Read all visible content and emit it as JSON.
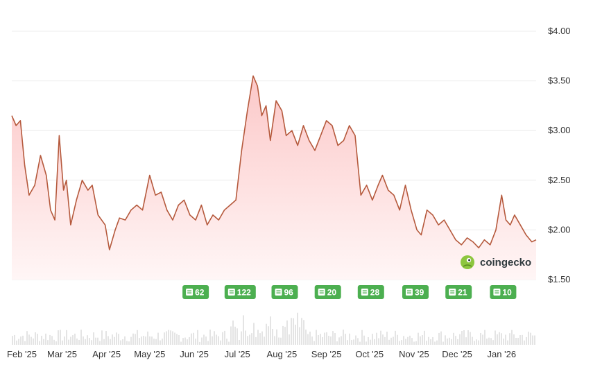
{
  "brand": {
    "name": "coingecko"
  },
  "colors": {
    "line": "#b5593c",
    "line_down": "#d63a2f",
    "area_top": "#fcc8c8",
    "area_bottom": "#fff6f6",
    "grid": "#ececec",
    "badge": "#4caf50",
    "volume": "#e4e4e4",
    "logo": "#8dc63f"
  },
  "chart_data": {
    "type": "area",
    "ylim": [
      1.5,
      4.0
    ],
    "yticks": [
      "$4.00",
      "$3.50",
      "$3.00",
      "$2.50",
      "$2.00",
      "$1.50"
    ],
    "ytick_values": [
      4.0,
      3.5,
      3.0,
      2.5,
      2.0,
      1.5
    ],
    "xticks": [
      "Feb '25",
      "Mar '25",
      "Apr '25",
      "May '25",
      "Jun '25",
      "Jul '25",
      "Aug '25",
      "Sep '25",
      "Oct '25",
      "Nov '25",
      "Dec '25",
      "Jan '26"
    ],
    "xtick_dates": [
      "2025-02-01",
      "2025-03-01",
      "2025-04-01",
      "2025-05-01",
      "2025-06-01",
      "2025-07-01",
      "2025-08-01",
      "2025-09-01",
      "2025-10-01",
      "2025-11-01",
      "2025-12-01",
      "2026-01-01"
    ],
    "x_range": [
      "2025-01-25",
      "2026-01-25"
    ],
    "grid": true,
    "series": [
      {
        "x": [
          "2025-01-25",
          "2025-01-28",
          "2025-01-31",
          "2025-02-03",
          "2025-02-06",
          "2025-02-10",
          "2025-02-14",
          "2025-02-18",
          "2025-02-21",
          "2025-02-24",
          "2025-02-27",
          "2025-03-02",
          "2025-03-04",
          "2025-03-07",
          "2025-03-11",
          "2025-03-15",
          "2025-03-19",
          "2025-03-22",
          "2025-03-26",
          "2025-03-31",
          "2025-04-03",
          "2025-04-07",
          "2025-04-10",
          "2025-04-14",
          "2025-04-18",
          "2025-04-22",
          "2025-04-26",
          "2025-05-01",
          "2025-05-05",
          "2025-05-09",
          "2025-05-13",
          "2025-05-17",
          "2025-05-21",
          "2025-05-25",
          "2025-05-29",
          "2025-06-02",
          "2025-06-06",
          "2025-06-10",
          "2025-06-14",
          "2025-06-18",
          "2025-06-22",
          "2025-06-26",
          "2025-06-30",
          "2025-07-04",
          "2025-07-08",
          "2025-07-12",
          "2025-07-15",
          "2025-07-18",
          "2025-07-21",
          "2025-07-24",
          "2025-07-28",
          "2025-08-01",
          "2025-08-04",
          "2025-08-08",
          "2025-08-12",
          "2025-08-16",
          "2025-08-20",
          "2025-08-24",
          "2025-08-28",
          "2025-09-01",
          "2025-09-05",
          "2025-09-09",
          "2025-09-13",
          "2025-09-17",
          "2025-09-21",
          "2025-09-25",
          "2025-09-29",
          "2025-10-03",
          "2025-10-07",
          "2025-10-10",
          "2025-10-14",
          "2025-10-18",
          "2025-10-22",
          "2025-10-26",
          "2025-10-30",
          "2025-11-03",
          "2025-11-06",
          "2025-11-10",
          "2025-11-14",
          "2025-11-18",
          "2025-11-22",
          "2025-11-26",
          "2025-11-30",
          "2025-12-04",
          "2025-12-08",
          "2025-12-12",
          "2025-12-16",
          "2025-12-20",
          "2025-12-24",
          "2025-12-28",
          "2026-01-01",
          "2026-01-04",
          "2026-01-07",
          "2026-01-10",
          "2026-01-14",
          "2026-01-18",
          "2026-01-22",
          "2026-01-25"
        ],
        "values": [
          3.15,
          3.05,
          3.1,
          2.65,
          2.35,
          2.45,
          2.75,
          2.55,
          2.2,
          2.1,
          2.95,
          2.4,
          2.5,
          2.05,
          2.3,
          2.5,
          2.4,
          2.45,
          2.15,
          2.05,
          1.8,
          2.0,
          2.12,
          2.1,
          2.2,
          2.25,
          2.2,
          2.55,
          2.35,
          2.38,
          2.2,
          2.1,
          2.25,
          2.3,
          2.15,
          2.1,
          2.25,
          2.05,
          2.15,
          2.1,
          2.2,
          2.25,
          2.3,
          2.8,
          3.2,
          3.55,
          3.45,
          3.15,
          3.25,
          2.9,
          3.3,
          3.2,
          2.95,
          3.0,
          2.85,
          3.05,
          2.9,
          2.8,
          2.95,
          3.1,
          3.05,
          2.85,
          2.9,
          3.05,
          2.95,
          2.35,
          2.45,
          2.3,
          2.45,
          2.55,
          2.4,
          2.35,
          2.2,
          2.45,
          2.2,
          2.0,
          1.95,
          2.2,
          2.15,
          2.05,
          2.1,
          2.0,
          1.9,
          1.85,
          1.92,
          1.88,
          1.82,
          1.9,
          1.85,
          2.0,
          2.35,
          2.1,
          2.05,
          2.15,
          2.05,
          1.95,
          1.88,
          1.9
        ]
      }
    ]
  },
  "badges": [
    {
      "date": "2025-06-02",
      "count": "62"
    },
    {
      "date": "2025-07-03",
      "count": "122"
    },
    {
      "date": "2025-08-03",
      "count": "96"
    },
    {
      "date": "2025-09-02",
      "count": "20"
    },
    {
      "date": "2025-10-02",
      "count": "28"
    },
    {
      "date": "2025-11-02",
      "count": "39"
    },
    {
      "date": "2025-12-02",
      "count": "21"
    },
    {
      "date": "2026-01-02",
      "count": "10"
    }
  ]
}
